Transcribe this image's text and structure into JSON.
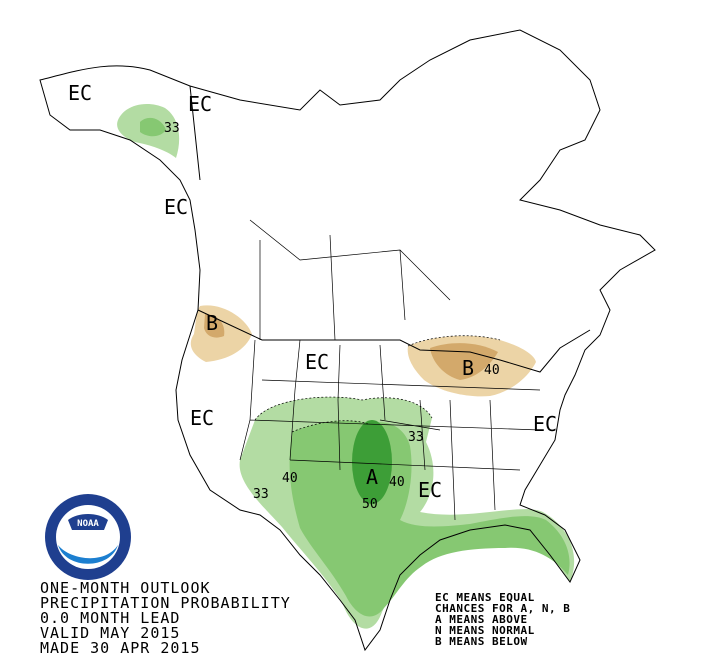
{
  "map_labels": [
    "EC",
    "EC",
    "33",
    "EC",
    "B",
    "EC",
    "EC",
    "B",
    "40",
    "33",
    "EC",
    "40",
    "A",
    "40",
    "33",
    "50",
    "EC"
  ],
  "logo": "NOAA",
  "title_lines": [
    "ONE-MONTH OUTLOOK",
    "PRECIPITATION PROBABILITY",
    "0.0 MONTH LEAD",
    "VALID MAY 2015",
    "MADE 30 APR 2015"
  ],
  "legend_lines": [
    "EC MEANS EQUAL",
    "CHANCES FOR A, N, B",
    "A MEANS ABOVE",
    "N MEANS NORMAL",
    "B MEANS BELOW"
  ]
}
